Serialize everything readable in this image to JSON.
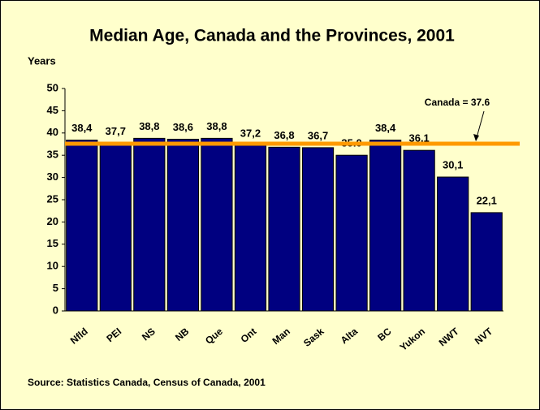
{
  "chart_data": {
    "type": "bar",
    "title": "Median Age, Canada and the Provinces, 2001",
    "y_axis_label": "Years",
    "source": "Source: Statistics Canada, Census of Canada, 2001",
    "categories": [
      "Nfld",
      "PEI",
      "NS",
      "NB",
      "Que",
      "Ont",
      "Man",
      "Sask",
      "Alta",
      "BC",
      "Yukon",
      "NWT",
      "NVT"
    ],
    "values": [
      38.4,
      37.7,
      38.8,
      38.6,
      38.8,
      37.2,
      36.8,
      36.7,
      35.0,
      38.4,
      36.1,
      30.1,
      22.1
    ],
    "value_labels": [
      "38,4",
      "37,7",
      "38,8",
      "38,6",
      "38,8",
      "37,2",
      "36,8",
      "36,7",
      "35.0",
      "38,4",
      "36.1",
      "30,1",
      "22,1"
    ],
    "color": "#000080",
    "reference_line": {
      "value": 37.6,
      "label": "Canada = 37.6",
      "color": "#ff9900"
    },
    "ylim": [
      0,
      50
    ],
    "yticks": [
      0,
      5,
      10,
      15,
      20,
      25,
      30,
      35,
      40,
      45,
      50
    ],
    "grid": false
  }
}
